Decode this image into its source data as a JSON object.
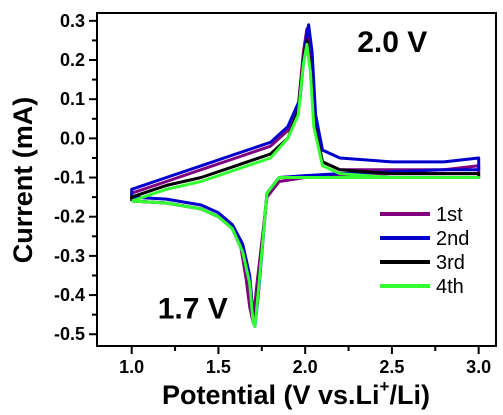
{
  "chart_data": {
    "type": "line",
    "xlabel": {
      "pre": "Potential (V vs.Li",
      "sup": "+",
      "post": "/Li)"
    },
    "ylabel": "Current (mA)",
    "xlim": [
      0.8,
      3.1
    ],
    "ylim": [
      -0.53,
      0.32
    ],
    "x_ticks": [
      1.0,
      1.5,
      2.0,
      2.5,
      3.0
    ],
    "x_tick_labels": [
      "1.0",
      "1.5",
      "2.0",
      "2.5",
      "3.0"
    ],
    "y_ticks": [
      -0.5,
      -0.4,
      -0.3,
      -0.2,
      -0.1,
      0.0,
      0.1,
      0.2,
      0.3
    ],
    "y_tick_labels": [
      "-0.5",
      "-0.4",
      "-0.3",
      "-0.2",
      "-0.1",
      "0.0",
      "0.1",
      "0.2",
      "0.3"
    ],
    "annotations": [
      {
        "text": "2.0 V",
        "x": 2.3,
        "y": 0.22
      },
      {
        "text": "1.7 V",
        "x": 1.15,
        "y": -0.46
      }
    ],
    "legend": {
      "position": "bottom-right"
    },
    "series": [
      {
        "name": "1st",
        "color": "#800080",
        "x": [
          1.0,
          1.2,
          1.4,
          1.5,
          1.58,
          1.63,
          1.66,
          1.68,
          1.7,
          1.72,
          1.78,
          1.85,
          2.0,
          2.2,
          2.5,
          2.8,
          3.0,
          3.0,
          2.8,
          2.5,
          2.2,
          2.1,
          2.05,
          2.03,
          2.01,
          1.99,
          1.96,
          1.9,
          1.8,
          1.6,
          1.4,
          1.2,
          1.0,
          1.0
        ],
        "y": [
          -0.16,
          -0.165,
          -0.18,
          -0.2,
          -0.23,
          -0.28,
          -0.36,
          -0.43,
          -0.47,
          -0.38,
          -0.15,
          -0.11,
          -0.1,
          -0.095,
          -0.09,
          -0.09,
          -0.09,
          -0.07,
          -0.08,
          -0.08,
          -0.08,
          -0.06,
          0.05,
          0.2,
          0.28,
          0.22,
          0.08,
          0.02,
          -0.02,
          -0.05,
          -0.08,
          -0.11,
          -0.14,
          -0.16
        ]
      },
      {
        "name": "2nd",
        "color": "#0000cd",
        "x": [
          1.0,
          1.2,
          1.4,
          1.5,
          1.58,
          1.64,
          1.68,
          1.7,
          1.71,
          1.73,
          1.78,
          1.85,
          2.0,
          2.2,
          2.5,
          2.8,
          3.0,
          3.0,
          2.8,
          2.5,
          2.2,
          2.1,
          2.06,
          2.04,
          2.02,
          2.0,
          1.97,
          1.9,
          1.8,
          1.6,
          1.4,
          1.2,
          1.0,
          1.0
        ],
        "y": [
          -0.15,
          -0.155,
          -0.17,
          -0.19,
          -0.22,
          -0.27,
          -0.35,
          -0.45,
          -0.48,
          -0.4,
          -0.14,
          -0.1,
          -0.095,
          -0.09,
          -0.085,
          -0.08,
          -0.08,
          -0.05,
          -0.06,
          -0.06,
          -0.05,
          -0.03,
          0.06,
          0.22,
          0.29,
          0.24,
          0.1,
          0.03,
          -0.01,
          -0.04,
          -0.07,
          -0.1,
          -0.13,
          -0.15
        ]
      },
      {
        "name": "3rd",
        "color": "#000000",
        "x": [
          1.0,
          1.2,
          1.4,
          1.5,
          1.58,
          1.64,
          1.68,
          1.7,
          1.71,
          1.73,
          1.78,
          1.85,
          2.0,
          2.2,
          2.5,
          2.8,
          3.0,
          3.0,
          2.8,
          2.5,
          2.2,
          2.1,
          2.05,
          2.03,
          2.01,
          1.99,
          1.96,
          1.9,
          1.8,
          1.6,
          1.4,
          1.2,
          1.0,
          1.0
        ],
        "y": [
          -0.16,
          -0.165,
          -0.18,
          -0.2,
          -0.23,
          -0.29,
          -0.37,
          -0.46,
          -0.47,
          -0.38,
          -0.14,
          -0.1,
          -0.1,
          -0.1,
          -0.1,
          -0.1,
          -0.1,
          -0.09,
          -0.09,
          -0.09,
          -0.08,
          -0.06,
          0.04,
          0.18,
          0.25,
          0.2,
          0.07,
          0.0,
          -0.04,
          -0.07,
          -0.1,
          -0.12,
          -0.15,
          -0.16
        ]
      },
      {
        "name": "4th",
        "color": "#33ff33",
        "x": [
          1.0,
          1.2,
          1.4,
          1.5,
          1.58,
          1.64,
          1.68,
          1.7,
          1.71,
          1.73,
          1.78,
          1.85,
          2.0,
          2.2,
          2.5,
          2.8,
          3.0,
          3.0,
          2.8,
          2.5,
          2.2,
          2.1,
          2.05,
          2.03,
          2.01,
          1.99,
          1.96,
          1.9,
          1.8,
          1.6,
          1.4,
          1.2,
          1.0,
          1.0
        ],
        "y": [
          -0.16,
          -0.165,
          -0.18,
          -0.2,
          -0.23,
          -0.29,
          -0.37,
          -0.47,
          -0.48,
          -0.39,
          -0.14,
          -0.1,
          -0.1,
          -0.1,
          -0.1,
          -0.1,
          -0.1,
          -0.1,
          -0.1,
          -0.1,
          -0.09,
          -0.07,
          0.03,
          0.17,
          0.24,
          0.19,
          0.06,
          0.0,
          -0.05,
          -0.08,
          -0.11,
          -0.13,
          -0.16,
          -0.16
        ]
      }
    ]
  }
}
